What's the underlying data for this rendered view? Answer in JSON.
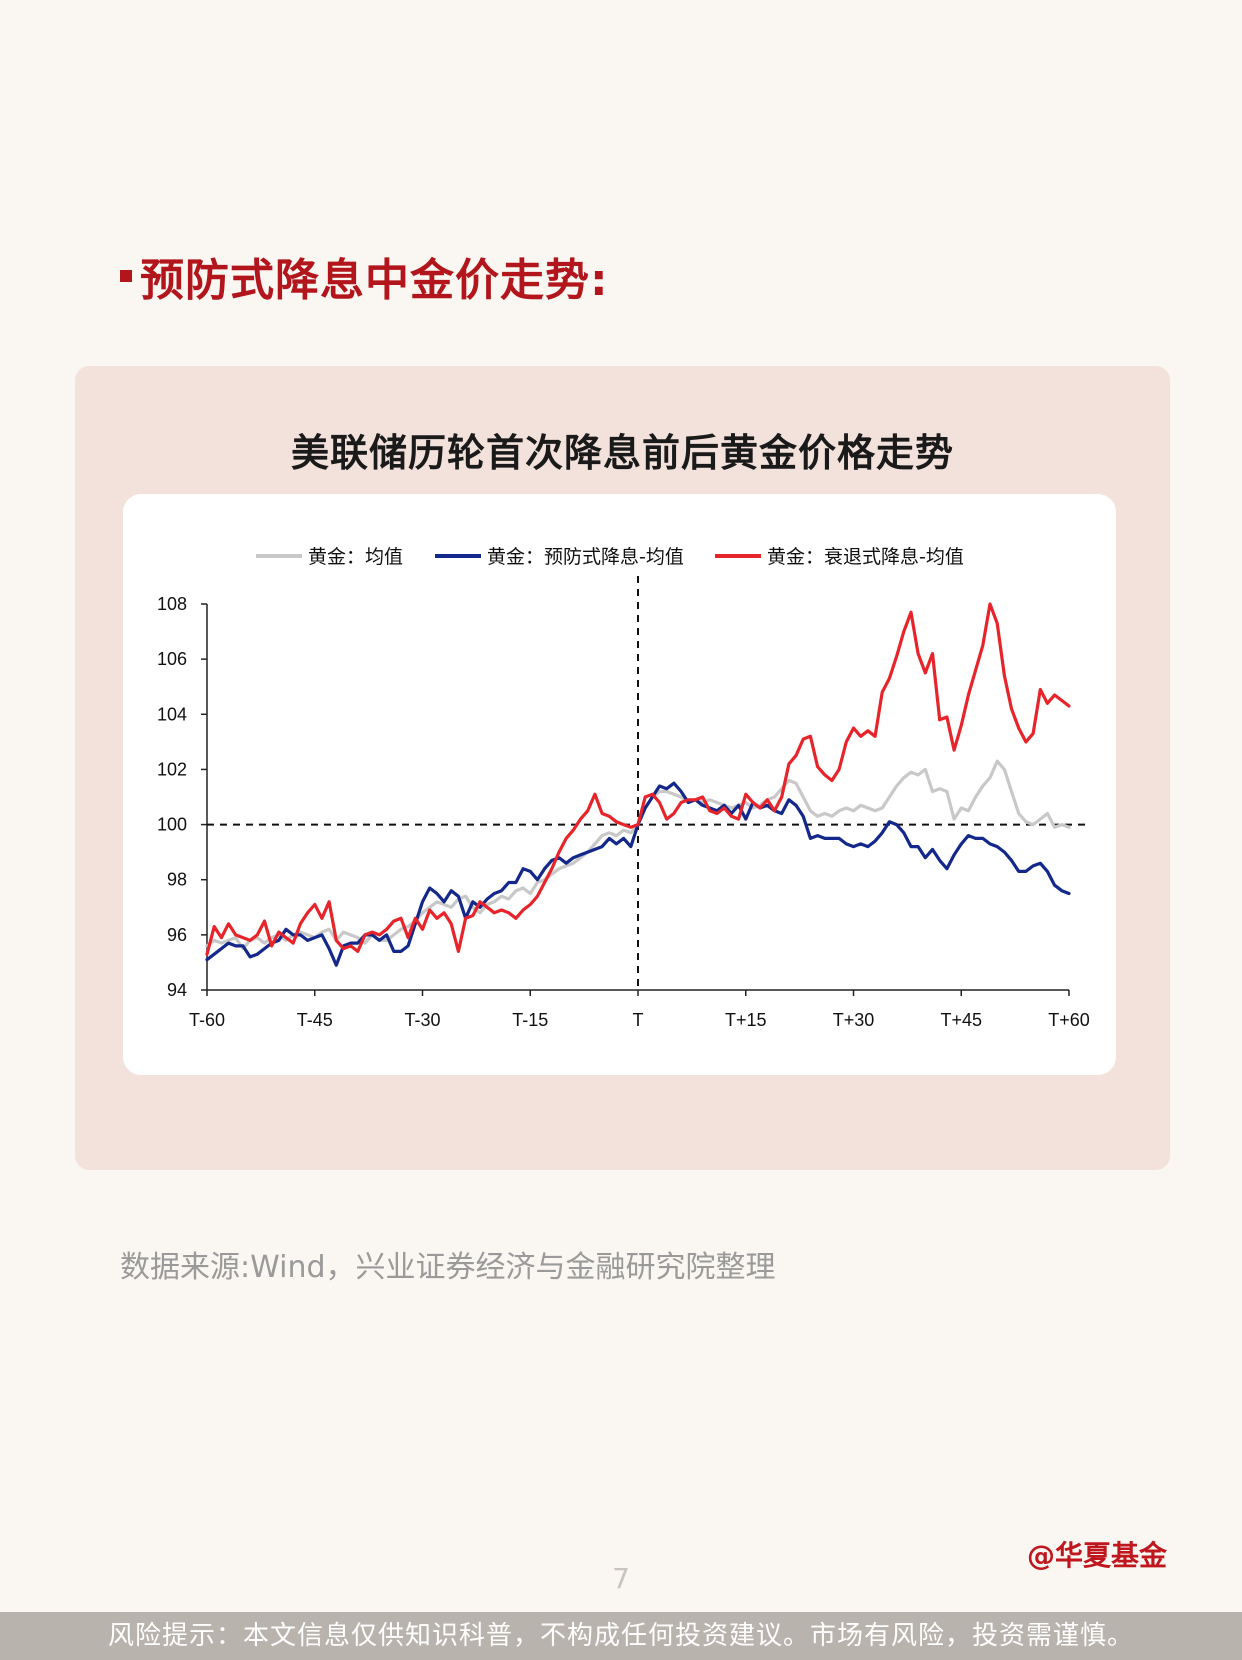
{
  "section_title": "预防式降息中金价走势:",
  "chart_title": "美联储历轮首次降息前后黄金价格走势",
  "source_text": "数据来源:Wind，兴业证券经济与金融研究院整理",
  "brand": "@华夏基金",
  "page_number": "7",
  "footer_text": "风险提示：本文信息仅供知识科普，不构成任何投资建议。市场有风险，投资需谨慎。",
  "colors": {
    "accent": "#b2161c",
    "series_avg": "#c8c8c8",
    "series_preventive": "#13288a",
    "series_recession": "#e8242b"
  },
  "chart_data": {
    "type": "line",
    "title": "美联储历轮首次降息前后黄金价格走势",
    "xlabel": "",
    "ylabel": "",
    "x": [
      -60,
      -59,
      -58,
      -57,
      -56,
      -55,
      -54,
      -53,
      -52,
      -51,
      -50,
      -49,
      -48,
      -47,
      -46,
      -45,
      -44,
      -43,
      -42,
      -41,
      -40,
      -39,
      -38,
      -37,
      -36,
      -35,
      -34,
      -33,
      -32,
      -31,
      -30,
      -29,
      -28,
      -27,
      -26,
      -25,
      -24,
      -23,
      -22,
      -21,
      -20,
      -19,
      -18,
      -17,
      -16,
      -15,
      -14,
      -13,
      -12,
      -11,
      -10,
      -9,
      -8,
      -7,
      -6,
      -5,
      -4,
      -3,
      -2,
      -1,
      0,
      1,
      2,
      3,
      4,
      5,
      6,
      7,
      8,
      9,
      10,
      11,
      12,
      13,
      14,
      15,
      16,
      17,
      18,
      19,
      20,
      21,
      22,
      23,
      24,
      25,
      26,
      27,
      28,
      29,
      30,
      31,
      32,
      33,
      34,
      35,
      36,
      37,
      38,
      39,
      40,
      41,
      42,
      43,
      44,
      45,
      46,
      47,
      48,
      49,
      50,
      51,
      52,
      53,
      54,
      55,
      56,
      57,
      58,
      59,
      60
    ],
    "xticks": [
      -60,
      -45,
      -30,
      -15,
      0,
      15,
      30,
      45,
      60
    ],
    "xtick_labels": [
      "T-60",
      "T-45",
      "T-30",
      "T-15",
      "T",
      "T+15",
      "T+30",
      "T+45",
      "T+60"
    ],
    "ylim": [
      94,
      108
    ],
    "yticks": [
      94,
      96,
      98,
      100,
      102,
      104,
      106,
      108
    ],
    "reference_lines": {
      "y": 100,
      "x": 0
    },
    "legend": "top",
    "series": [
      {
        "name": "黄金：均值",
        "color": "#c8c8c8",
        "values": [
          95.6,
          95.8,
          95.7,
          95.8,
          95.9,
          95.5,
          95.8,
          95.9,
          95.7,
          95.9,
          96.0,
          95.8,
          96.0,
          96.1,
          96.0,
          95.9,
          96.1,
          96.2,
          95.8,
          96.1,
          96.0,
          95.9,
          95.7,
          96.0,
          95.8,
          95.8,
          96.0,
          96.2,
          96.3,
          96.5,
          96.8,
          97.0,
          97.2,
          97.1,
          97.0,
          97.3,
          97.4,
          97.0,
          96.8,
          97.1,
          97.2,
          97.4,
          97.3,
          97.6,
          97.7,
          97.5,
          97.9,
          98.0,
          98.2,
          98.4,
          98.5,
          98.6,
          98.8,
          99.0,
          99.3,
          99.6,
          99.7,
          99.6,
          99.8,
          99.7,
          100.0,
          100.6,
          101.0,
          101.2,
          101.2,
          101.1,
          101.0,
          100.8,
          100.9,
          100.8,
          100.9,
          100.8,
          100.7,
          100.6,
          100.7,
          100.8,
          100.6,
          100.7,
          100.9,
          101.0,
          101.3,
          101.6,
          101.5,
          101.0,
          100.5,
          100.3,
          100.4,
          100.3,
          100.5,
          100.6,
          100.5,
          100.7,
          100.6,
          100.5,
          100.6,
          101.0,
          101.4,
          101.7,
          101.9,
          101.8,
          102.0,
          101.2,
          101.3,
          101.2,
          100.2,
          100.6,
          100.5,
          101.0,
          101.4,
          101.7,
          102.3,
          102.0,
          101.2,
          100.4,
          100.1,
          100.0,
          100.2,
          100.4,
          99.9,
          100.0,
          99.9
        ]
      },
      {
        "name": "黄金：预防式降息-均值",
        "color": "#13288a",
        "values": [
          95.1,
          95.3,
          95.5,
          95.7,
          95.6,
          95.6,
          95.2,
          95.3,
          95.5,
          95.7,
          95.8,
          96.2,
          96.0,
          96.0,
          95.8,
          95.9,
          96.0,
          95.5,
          94.9,
          95.6,
          95.7,
          95.7,
          96.0,
          96.0,
          95.8,
          96.0,
          95.4,
          95.4,
          95.6,
          96.4,
          97.2,
          97.7,
          97.5,
          97.2,
          97.6,
          97.4,
          96.6,
          97.2,
          97.0,
          97.3,
          97.5,
          97.6,
          97.9,
          97.9,
          98.4,
          98.3,
          98.0,
          98.4,
          98.7,
          98.8,
          98.6,
          98.8,
          98.9,
          99.0,
          99.1,
          99.2,
          99.5,
          99.3,
          99.5,
          99.2,
          100.0,
          100.6,
          101.0,
          101.4,
          101.3,
          101.5,
          101.2,
          100.8,
          100.9,
          100.7,
          100.6,
          100.5,
          100.7,
          100.4,
          100.7,
          100.2,
          100.8,
          100.6,
          100.7,
          100.5,
          100.4,
          100.9,
          100.7,
          100.3,
          99.5,
          99.6,
          99.5,
          99.5,
          99.5,
          99.3,
          99.2,
          99.3,
          99.2,
          99.4,
          99.7,
          100.1,
          100.0,
          99.7,
          99.2,
          99.2,
          98.8,
          99.1,
          98.7,
          98.4,
          98.9,
          99.3,
          99.6,
          99.5,
          99.5,
          99.3,
          99.2,
          99.0,
          98.7,
          98.3,
          98.3,
          98.5,
          98.6,
          98.3,
          97.8,
          97.6,
          97.5
        ]
      },
      {
        "name": "黄金：衰退式降息-均值",
        "color": "#e8242b",
        "values": [
          95.3,
          96.3,
          95.9,
          96.4,
          96.0,
          95.9,
          95.8,
          96.0,
          96.5,
          95.6,
          96.1,
          95.9,
          95.7,
          96.4,
          96.8,
          97.1,
          96.6,
          97.2,
          95.8,
          95.5,
          95.6,
          95.4,
          96.0,
          96.1,
          96.0,
          96.2,
          96.5,
          96.6,
          95.9,
          96.6,
          96.2,
          96.9,
          96.6,
          96.8,
          96.4,
          95.4,
          96.6,
          96.7,
          97.2,
          97.0,
          96.8,
          96.9,
          96.8,
          96.6,
          96.9,
          97.1,
          97.4,
          97.9,
          98.4,
          99.0,
          99.5,
          99.8,
          100.2,
          100.5,
          101.1,
          100.4,
          100.3,
          100.1,
          100.0,
          99.9,
          100.0,
          101.0,
          101.1,
          100.8,
          100.2,
          100.4,
          100.8,
          100.9,
          100.9,
          101.0,
          100.5,
          100.4,
          100.6,
          100.3,
          100.2,
          101.1,
          100.8,
          100.6,
          100.9,
          100.5,
          101.0,
          102.2,
          102.5,
          103.1,
          103.2,
          102.1,
          101.8,
          101.6,
          102.0,
          103.0,
          103.5,
          103.2,
          103.4,
          103.2,
          104.8,
          105.3,
          106.1,
          107.0,
          107.7,
          106.2,
          105.5,
          106.2,
          103.8,
          103.9,
          102.7,
          103.6,
          104.7,
          105.6,
          106.5,
          108.0,
          107.3,
          105.4,
          104.2,
          103.5,
          103.0,
          103.3,
          104.9,
          104.4,
          104.7,
          104.5,
          104.3
        ]
      }
    ]
  }
}
